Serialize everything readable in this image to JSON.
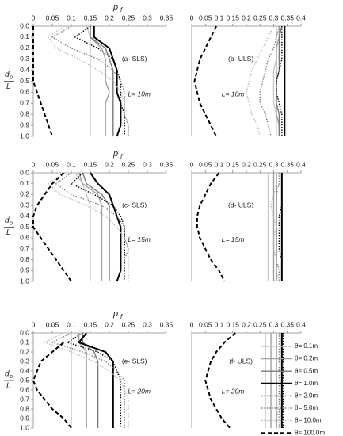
{
  "legend": [
    {
      "name": "θ= 0.1m",
      "color": "#c8c8c8",
      "dash": "solid",
      "width": 1.4
    },
    {
      "name": "θ= 0.2m",
      "color": "#a0a0a0",
      "dash": "solid",
      "width": 1.4
    },
    {
      "name": "θ= 0.5m",
      "color": "#7a7a7a",
      "dash": "solid",
      "width": 1.4
    },
    {
      "name": "θ= 1.0m",
      "color": "#000000",
      "dash": "solid",
      "width": 2
    },
    {
      "name": "θ= 2.0m",
      "color": "#000000",
      "dash": "dotted",
      "width": 1.4
    },
    {
      "name": "θ= 5.0m",
      "color": "#808080",
      "dash": "dotted",
      "width": 1.4
    },
    {
      "name": "θ= 10.0m",
      "color": "#bbbbbb",
      "dash": "dotted",
      "width": 1.4
    },
    {
      "name": "θ= 100.0m",
      "color": "#000000",
      "dash": "dashed",
      "width": 2
    }
  ],
  "chart_data": [
    {
      "type": "line",
      "annotation": "(a- SLS)",
      "length_label": "L= 10m",
      "xlabel": "p",
      "xlabel_subscript": "f",
      "ylabel": "d",
      "ylabel_subscript": "p",
      "ylabel_denominator": "L",
      "y_inverted": true,
      "xlim": [
        0,
        0.35
      ],
      "xticks": [
        0,
        0.05,
        0.1,
        0.15,
        0.2,
        0.25,
        0.3,
        0.35
      ],
      "ylim": [
        0,
        1
      ],
      "yticks": [
        {
          "value": 0,
          "label": "0.0"
        },
        0.1,
        0.2,
        0.3,
        0.4,
        0.5,
        0.6,
        0.7,
        0.8,
        0.9,
        {
          "value": 1,
          "label": "1.0"
        }
      ],
      "depths": [
        0,
        0.1,
        0.2,
        0.3,
        0.4,
        0.5,
        0.6,
        0.7,
        0.8,
        0.9,
        1
      ],
      "series": [
        {
          "values": [
            0.14,
            0.15,
            0.15,
            0.15,
            0.15,
            0.15,
            0.15,
            0.15,
            0.15,
            0.15,
            0.15
          ]
        },
        {
          "values": [
            0.15,
            0.15,
            0.18,
            0.19,
            0.19,
            0.19,
            0.2,
            0.19,
            0.19,
            0.19,
            0.19
          ]
        },
        {
          "values": [
            0.15,
            0.15,
            0.19,
            0.2,
            0.21,
            0.21,
            0.21,
            0.21,
            0.21,
            0.21,
            0.21
          ]
        },
        {
          "values": [
            0.16,
            0.16,
            0.2,
            0.21,
            0.22,
            0.22,
            0.22,
            0.23,
            0.23,
            0.23,
            0.22
          ]
        },
        {
          "values": [
            0.15,
            0.11,
            0.17,
            0.21,
            0.22,
            0.23,
            0.23,
            0.23,
            0.24,
            0.24,
            0.24
          ]
        },
        {
          "values": [
            0.1,
            0.05,
            0.1,
            0.17,
            0.21,
            0.23,
            0.24,
            0.24,
            0.24,
            0.25,
            0.25
          ]
        },
        {
          "values": [
            0.08,
            0.04,
            0.06,
            0.12,
            0.17,
            0.21,
            0.23,
            0.24,
            0.24,
            0.25,
            0.25
          ]
        },
        {
          "values": [
            0,
            0,
            0,
            0,
            0,
            0,
            0.01,
            0.02,
            0.03,
            0.04,
            0.05
          ]
        }
      ]
    },
    {
      "type": "line",
      "annotation": "(b- ULS)",
      "length_label": "L= 10m",
      "y_inverted": true,
      "xlim": [
        0,
        0.4
      ],
      "xticks": [
        0,
        0.05,
        0.1,
        0.15,
        0.2,
        0.25,
        0.3,
        0.35,
        0.4
      ],
      "ylim": [
        0,
        1
      ],
      "depths": [
        0,
        0.1,
        0.2,
        0.3,
        0.4,
        0.5,
        0.6,
        0.7,
        0.8,
        0.9,
        1
      ],
      "series": [
        {
          "values": [
            0.31,
            0.31,
            0.31,
            0.31,
            0.3,
            0.3,
            0.3,
            0.3,
            0.31,
            0.31,
            0.31
          ]
        },
        {
          "values": [
            0.32,
            0.32,
            0.31,
            0.31,
            0.31,
            0.31,
            0.31,
            0.31,
            0.31,
            0.32,
            0.32
          ]
        },
        {
          "values": [
            0.33,
            0.32,
            0.32,
            0.32,
            0.32,
            0.31,
            0.31,
            0.31,
            0.32,
            0.32,
            0.32
          ]
        },
        {
          "values": [
            0.34,
            0.34,
            0.34,
            0.34,
            0.34,
            0.34,
            0.34,
            0.34,
            0.34,
            0.34,
            0.34
          ]
        },
        {
          "values": [
            0.33,
            0.33,
            0.33,
            0.33,
            0.32,
            0.31,
            0.31,
            0.32,
            0.33,
            0.33,
            0.33
          ]
        },
        {
          "values": [
            0.32,
            0.31,
            0.3,
            0.28,
            0.27,
            0.26,
            0.25,
            0.25,
            0.27,
            0.28,
            0.29
          ]
        },
        {
          "values": [
            0.3,
            0.28,
            0.26,
            0.24,
            0.22,
            0.21,
            0.2,
            0.21,
            0.22,
            0.24,
            0.25
          ]
        },
        {
          "values": [
            0.09,
            0.07,
            0.05,
            0.03,
            0.02,
            0.01,
            0.02,
            0.03,
            0.05,
            0.07,
            0.09
          ]
        }
      ]
    },
    {
      "type": "line",
      "annotation": "(c- SLS)",
      "length_label": "L= 15m",
      "xlabel": "p",
      "xlabel_subscript": "f",
      "ylabel": "d",
      "ylabel_subscript": "p",
      "ylabel_denominator": "L",
      "y_inverted": true,
      "xlim": [
        0,
        0.35
      ],
      "xticks": [
        0,
        0.05,
        0.1,
        0.15,
        0.2,
        0.25,
        0.3,
        0.35
      ],
      "ylim": [
        0,
        1
      ],
      "yticks": [
        {
          "value": 0,
          "label": "0.0"
        },
        0.1,
        0.2,
        0.3,
        0.4,
        0.5,
        0.6,
        0.7,
        0.8,
        0.9,
        {
          "value": 1,
          "label": "1.0"
        }
      ],
      "depths": [
        0,
        0.1,
        0.2,
        0.3,
        0.4,
        0.5,
        0.6,
        0.7,
        0.8,
        0.9,
        1
      ],
      "series": [
        {
          "values": [
            0.11,
            0.13,
            0.14,
            0.15,
            0.15,
            0.15,
            0.15,
            0.15,
            0.15,
            0.15,
            0.15
          ]
        },
        {
          "values": [
            0.12,
            0.13,
            0.17,
            0.18,
            0.18,
            0.18,
            0.18,
            0.18,
            0.18,
            0.18,
            0.18
          ]
        },
        {
          "values": [
            0.13,
            0.14,
            0.18,
            0.2,
            0.2,
            0.2,
            0.2,
            0.2,
            0.2,
            0.2,
            0.2
          ]
        },
        {
          "values": [
            0.15,
            0.17,
            0.2,
            0.21,
            0.22,
            0.23,
            0.23,
            0.23,
            0.23,
            0.23,
            0.22
          ]
        },
        {
          "values": [
            0.13,
            0.1,
            0.16,
            0.21,
            0.23,
            0.24,
            0.24,
            0.24,
            0.24,
            0.24,
            0.24
          ]
        },
        {
          "values": [
            0.1,
            0.06,
            0.1,
            0.18,
            0.22,
            0.24,
            0.24,
            0.25,
            0.24,
            0.24,
            0.24
          ]
        },
        {
          "values": [
            0.08,
            0.04,
            0.07,
            0.14,
            0.19,
            0.22,
            0.24,
            0.25,
            0.25,
            0.25,
            0.25
          ]
        },
        {
          "values": [
            0.08,
            0.05,
            0.03,
            0.01,
            0,
            0,
            0.02,
            0.04,
            0.06,
            0.08,
            0.1
          ]
        }
      ]
    },
    {
      "type": "line",
      "annotation": "(d- ULS)",
      "length_label": "L= 15m",
      "y_inverted": true,
      "xlim": [
        0,
        0.4
      ],
      "xticks": [
        0,
        0.05,
        0.1,
        0.15,
        0.2,
        0.25,
        0.3,
        0.35,
        0.4
      ],
      "ylim": [
        0,
        1
      ],
      "depths": [
        0,
        0.1,
        0.2,
        0.3,
        0.4,
        0.5,
        0.6,
        0.7,
        0.8,
        0.9,
        1
      ],
      "series": [
        {
          "values": [
            0.28,
            0.28,
            0.28,
            0.28,
            0.28,
            0.28,
            0.28,
            0.28,
            0.28,
            0.28,
            0.28
          ]
        },
        {
          "values": [
            0.3,
            0.3,
            0.3,
            0.3,
            0.3,
            0.3,
            0.3,
            0.3,
            0.3,
            0.3,
            0.3
          ]
        },
        {
          "values": [
            0.31,
            0.31,
            0.31,
            0.31,
            0.31,
            0.31,
            0.31,
            0.31,
            0.31,
            0.31,
            0.31
          ]
        },
        {
          "values": [
            0.33,
            0.33,
            0.33,
            0.33,
            0.33,
            0.33,
            0.33,
            0.33,
            0.33,
            0.33,
            0.33
          ]
        },
        {
          "values": [
            0.33,
            0.33,
            0.33,
            0.33,
            0.32,
            0.32,
            0.32,
            0.32,
            0.33,
            0.33,
            0.33
          ]
        },
        {
          "values": [
            0.32,
            0.32,
            0.31,
            0.31,
            0.31,
            0.31,
            0.31,
            0.31,
            0.31,
            0.32,
            0.32
          ]
        },
        {
          "values": [
            0.31,
            0.31,
            0.3,
            0.29,
            0.3,
            0.31,
            0.3,
            0.3,
            0.31,
            0.31,
            0.32
          ]
        },
        {
          "values": [
            0.1,
            0.07,
            0.05,
            0.03,
            0.02,
            0.02,
            0.03,
            0.05,
            0.07,
            0.1,
            0.12
          ]
        }
      ]
    },
    {
      "type": "line",
      "annotation": "(e- SLS)",
      "length_label": "L= 20m",
      "xlabel": "p",
      "xlabel_subscript": "f",
      "ylabel": "d",
      "ylabel_subscript": "p",
      "ylabel_denominator": "L",
      "y_inverted": true,
      "xlim": [
        0,
        0.35
      ],
      "xticks": [
        0,
        0.05,
        0.1,
        0.15,
        0.2,
        0.25,
        0.3,
        0.35
      ],
      "ylim": [
        0,
        1
      ],
      "yticks": [
        {
          "value": 0,
          "label": "0.0"
        },
        0.1,
        0.2,
        0.3,
        0.4,
        0.5,
        0.6,
        0.7,
        0.8,
        0.9,
        {
          "value": 1,
          "label": "1.0"
        }
      ],
      "depths": [
        0,
        0.1,
        0.2,
        0.3,
        0.4,
        0.5,
        0.6,
        0.7,
        0.8,
        0.9,
        1
      ],
      "series": [
        {
          "values": [
            0.1,
            0.1,
            0.1,
            0.1,
            0.1,
            0.1,
            0.1,
            0.1,
            0.1,
            0.1,
            0.1
          ]
        },
        {
          "values": [
            0.12,
            0.12,
            0.14,
            0.14,
            0.14,
            0.14,
            0.14,
            0.14,
            0.14,
            0.14,
            0.14
          ]
        },
        {
          "values": [
            0.13,
            0.13,
            0.16,
            0.17,
            0.17,
            0.17,
            0.17,
            0.17,
            0.17,
            0.17,
            0.17
          ]
        },
        {
          "values": [
            0.14,
            0.12,
            0.19,
            0.21,
            0.21,
            0.21,
            0.21,
            0.21,
            0.21,
            0.21,
            0.21
          ]
        },
        {
          "values": [
            0.13,
            0.09,
            0.17,
            0.21,
            0.22,
            0.23,
            0.23,
            0.23,
            0.23,
            0.23,
            0.23
          ]
        },
        {
          "values": [
            0.1,
            0.05,
            0.13,
            0.19,
            0.22,
            0.24,
            0.24,
            0.24,
            0.24,
            0.24,
            0.24
          ]
        },
        {
          "values": [
            0.08,
            0.03,
            0.1,
            0.16,
            0.2,
            0.23,
            0.24,
            0.25,
            0.25,
            0.25,
            0.25
          ]
        },
        {
          "values": [
            null,
            0.08,
            0.05,
            0.02,
            0.01,
            0,
            0.01,
            0.03,
            0.05,
            0.08,
            0.1
          ]
        }
      ]
    },
    {
      "type": "line",
      "annotation": "(f- ULS)",
      "length_label": "L= 20m",
      "y_inverted": true,
      "xlim": [
        0,
        0.4
      ],
      "xticks": [
        0,
        0.05,
        0.1,
        0.15,
        0.2,
        0.25,
        0.3,
        0.35,
        0.4
      ],
      "ylim": [
        0,
        1
      ],
      "depths": [
        0,
        0.1,
        0.2,
        0.3,
        0.4,
        0.5,
        0.6,
        0.7,
        0.8,
        0.9,
        1
      ],
      "series": [
        {
          "values": [
            0.27,
            0.27,
            0.27,
            0.27,
            0.27,
            0.27,
            0.27,
            0.27,
            0.27,
            0.27,
            0.27
          ]
        },
        {
          "values": [
            0.29,
            0.29,
            0.29,
            0.29,
            0.29,
            0.29,
            0.29,
            0.29,
            0.29,
            0.29,
            0.29
          ]
        },
        {
          "values": [
            0.31,
            0.31,
            0.31,
            0.31,
            0.31,
            0.31,
            0.31,
            0.31,
            0.31,
            0.31,
            0.31
          ]
        },
        {
          "values": [
            0.33,
            0.33,
            0.33,
            0.33,
            0.33,
            0.33,
            0.33,
            0.33,
            0.33,
            0.33,
            0.33
          ]
        },
        {
          "values": [
            0.335,
            0.335,
            0.335,
            0.335,
            0.335,
            0.335,
            0.335,
            0.335,
            0.335,
            0.335,
            0.335
          ]
        },
        {
          "values": [
            0.32,
            0.32,
            0.32,
            0.32,
            0.32,
            0.32,
            0.32,
            0.32,
            0.32,
            0.32,
            0.32
          ]
        },
        {
          "values": [
            0.31,
            0.31,
            0.31,
            0.31,
            0.31,
            0.31,
            0.31,
            0.31,
            0.31,
            0.32,
            0.32
          ]
        },
        {
          "values": [
            0.16,
            0.12,
            0.09,
            0.07,
            0.06,
            0.05,
            0.06,
            0.07,
            0.09,
            0.11,
            0.14
          ]
        }
      ]
    }
  ]
}
